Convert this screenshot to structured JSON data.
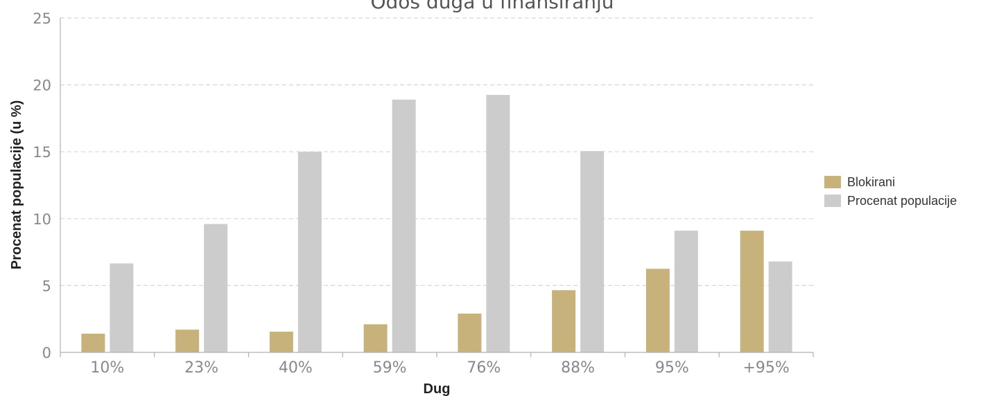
{
  "chart_data": {
    "type": "bar",
    "title": "Odos duga u finansiranju",
    "xlabel": "Dug",
    "ylabel": "Procenat populacije (u %)",
    "categories": [
      "10%",
      "23%",
      "40%",
      "59%",
      "76%",
      "88%",
      "95%",
      "+95%"
    ],
    "series": [
      {
        "name": "Blokirani",
        "color": "#c8b27c",
        "values": [
          1.4,
          1.7,
          1.55,
          2.1,
          2.9,
          4.65,
          6.25,
          9.1
        ]
      },
      {
        "name": "Procenat populacije",
        "color": "#cccccc",
        "values": [
          6.65,
          9.6,
          15.0,
          18.9,
          19.25,
          15.05,
          9.1,
          6.8
        ]
      }
    ],
    "ylim": [
      0,
      25
    ],
    "yticks": [
      0,
      5,
      10,
      15,
      20,
      25
    ],
    "grid": true,
    "legend_position": "right"
  }
}
